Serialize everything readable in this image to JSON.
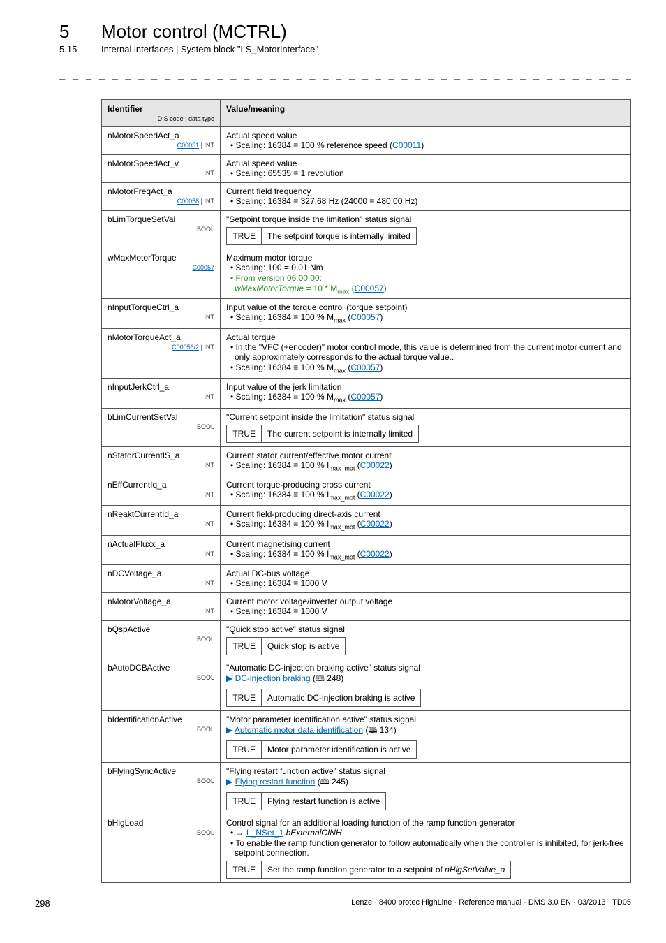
{
  "header": {
    "chapter_num": "5",
    "chapter_title": "Motor control (MCTRL)",
    "sub_num": "5.15",
    "sub_title": "Internal interfaces | System block \"LS_MotorInterface\""
  },
  "dashes": "_ _ _ _ _ _ _ _ _ _ _ _ _ _ _ _ _ _ _ _ _ _ _ _ _ _ _ _ _ _ _ _ _ _ _ _ _ _ _ _ _ _ _ _ _ _ _ _ _ _ _ _ _ _ _ _ _ _ _ _ _ _ _ _",
  "table": {
    "header": {
      "col1": "Identifier",
      "col1_sub": "DIS code | data type",
      "col2": "Value/meaning"
    },
    "rows": [
      {
        "id": "nMotorSpeedAct_a",
        "meta_link": "C00051",
        "meta_text": " | INT",
        "value_title": "Actual speed value",
        "bullets": [
          {
            "text": "Scaling: 16384 ≡ 100 % reference speed (",
            "link": "C00011",
            "after": ")"
          }
        ]
      },
      {
        "id": "nMotorSpeedAct_v",
        "meta_text": "INT",
        "value_title": "Actual speed value",
        "bullets": [
          {
            "text": "Scaling: 65535 ≡ 1 revolution"
          }
        ]
      },
      {
        "id": "nMotorFreqAct_a",
        "meta_link": "C00058",
        "meta_text": " | INT",
        "value_title": "Current field frequency",
        "bullets": [
          {
            "text": "Scaling: 16384 ≡ 327.68 Hz (24000 ≡ 480.00 Hz)"
          }
        ]
      },
      {
        "id": "bLimTorqueSetVal",
        "meta_text": "BOOL",
        "value_title": "\"Setpoint torque inside the limitation\" status signal",
        "inner": [
          {
            "l": "TRUE",
            "r": "The setpoint torque is internally limited"
          }
        ]
      },
      {
        "id": "wMaxMotorTorque",
        "meta_link": "C00057",
        "meta_text": "",
        "value_title": "Maximum motor torque",
        "bullets": [
          {
            "text": "Scaling: 100 = 0.01 Nm"
          }
        ],
        "green_lines": [
          "From version 06.00.00:",
          "wMaxMotorTorque = 10 * M"
        ],
        "green_sub": "max",
        "green_link": "C00057"
      },
      {
        "id": "nInputTorqueCtrl_a",
        "meta_text": "INT",
        "value_title": "Input value of the torque control (torque setpoint)",
        "bullets": [
          {
            "text": "Scaling: 16384 ≡ 100 % M",
            "sub": "max",
            "link_paren": "C00057"
          }
        ]
      },
      {
        "id": "nMotorTorqueAct_a",
        "meta_link": "C00056/2",
        "meta_text": " | INT",
        "value_title": "Actual torque",
        "bullets": [
          {
            "text": "In the \"VFC (+encoder)\" motor control mode, this value is determined from the current motor current and only approximately corresponds to the actual torque value.."
          },
          {
            "text": "Scaling: 16384 ≡ 100 % M",
            "sub": "max",
            "link_paren": "C00057"
          }
        ]
      },
      {
        "id": "nInputJerkCtrl_a",
        "meta_text": "INT",
        "value_title": "Input value of the jerk limitation",
        "bullets": [
          {
            "text": "Scaling: 16384 ≡ 100 % M",
            "sub": "max",
            "link_paren": "C00057"
          }
        ]
      },
      {
        "id": "bLimCurrentSetVal",
        "meta_text": "BOOL",
        "value_title": "\"Current setpoint inside the limitation\" status signal",
        "inner": [
          {
            "l": "TRUE",
            "r": "The current setpoint is internally limited"
          }
        ]
      },
      {
        "id": "nStatorCurrentIS_a",
        "meta_text": "INT",
        "value_title": "Current stator current/effective motor current",
        "bullets": [
          {
            "text": "Scaling: 16384 ≡ 100 % I",
            "sub": "max_mot",
            "link_paren": "C00022"
          }
        ]
      },
      {
        "id": "nEffCurrentIq_a",
        "meta_text": "INT",
        "value_title": "Current torque-producing cross current",
        "bullets": [
          {
            "text": "Scaling: 16384 ≡ 100 % I",
            "sub": "max_mot",
            "link_paren": "C00022"
          }
        ]
      },
      {
        "id": "nReaktCurrentId_a",
        "meta_text": "INT",
        "value_title": "Current field-producing direct-axis current",
        "bullets": [
          {
            "text": "Scaling: 16384 ≡ 100 % I",
            "sub": "max_mot",
            "link_paren": "C00022"
          }
        ]
      },
      {
        "id": "nActualFluxx_a",
        "meta_text": "INT",
        "value_title": "Current magnetising current",
        "bullets": [
          {
            "text": "Scaling: 16384 ≡ 100 % I",
            "sub": "max_mot",
            "link_paren": "C00022"
          }
        ]
      },
      {
        "id": "nDCVoltage_a",
        "meta_text": "INT",
        "value_title": "Actual DC-bus voltage",
        "bullets": [
          {
            "text": "Scaling: 16384 ≡ 1000 V"
          }
        ]
      },
      {
        "id": "nMotorVoltage_a",
        "meta_text": "INT",
        "value_title": "Current motor voltage/inverter output voltage",
        "bullets": [
          {
            "text": "Scaling: 16384 ≡ 1000 V"
          }
        ]
      },
      {
        "id": "bQspActive",
        "meta_text": "BOOL",
        "value_title": "\"Quick stop active\" status signal",
        "inner": [
          {
            "l": "TRUE",
            "r": "Quick stop is active"
          }
        ]
      },
      {
        "id": "bAutoDCBActive",
        "meta_text": "BOOL",
        "value_title": "\"Automatic DC-injection braking active\" status signal",
        "see_link": "DC-injection braking",
        "see_ref": "248",
        "inner": [
          {
            "l": "TRUE",
            "r": "Automatic DC-injection braking is active"
          }
        ]
      },
      {
        "id": "bIdentificationActive",
        "meta_text": "BOOL",
        "value_title": "\"Motor parameter identification active\" status signal",
        "see_link": "Automatic motor data identification",
        "see_ref": "134",
        "inner": [
          {
            "l": "TRUE",
            "r": "Motor parameter identification is active"
          }
        ]
      },
      {
        "id": "bFlyingSyncActive",
        "meta_text": "BOOL",
        "value_title": "\"Flying restart function active\" status signal",
        "see_link": "Flying restart function",
        "see_ref": "245",
        "inner": [
          {
            "l": "TRUE",
            "r": "Flying restart function is active"
          }
        ]
      },
      {
        "id": "bHlgLoad",
        "meta_text": "BOOL",
        "value_title": "Control signal for an additional loading function of the ramp function generator",
        "bullets": [
          {
            "raw_arrow": true,
            "link": "L_NSet_1",
            "italic": ".bExternalCINH"
          },
          {
            "text": "To enable the ramp function generator to follow automatically when the controller is inhibited, for jerk-free setpoint connection."
          }
        ],
        "inner": [
          {
            "l": "TRUE",
            "r_pre": "Set the ramp function generator to a setpoint of ",
            "r_italic": "nHlgSetValue_a"
          }
        ]
      }
    ]
  },
  "footer": {
    "page": "298",
    "text": "Lenze · 8400 protec HighLine · Reference manual · DMS 3.0 EN · 03/2013 · TD05"
  }
}
